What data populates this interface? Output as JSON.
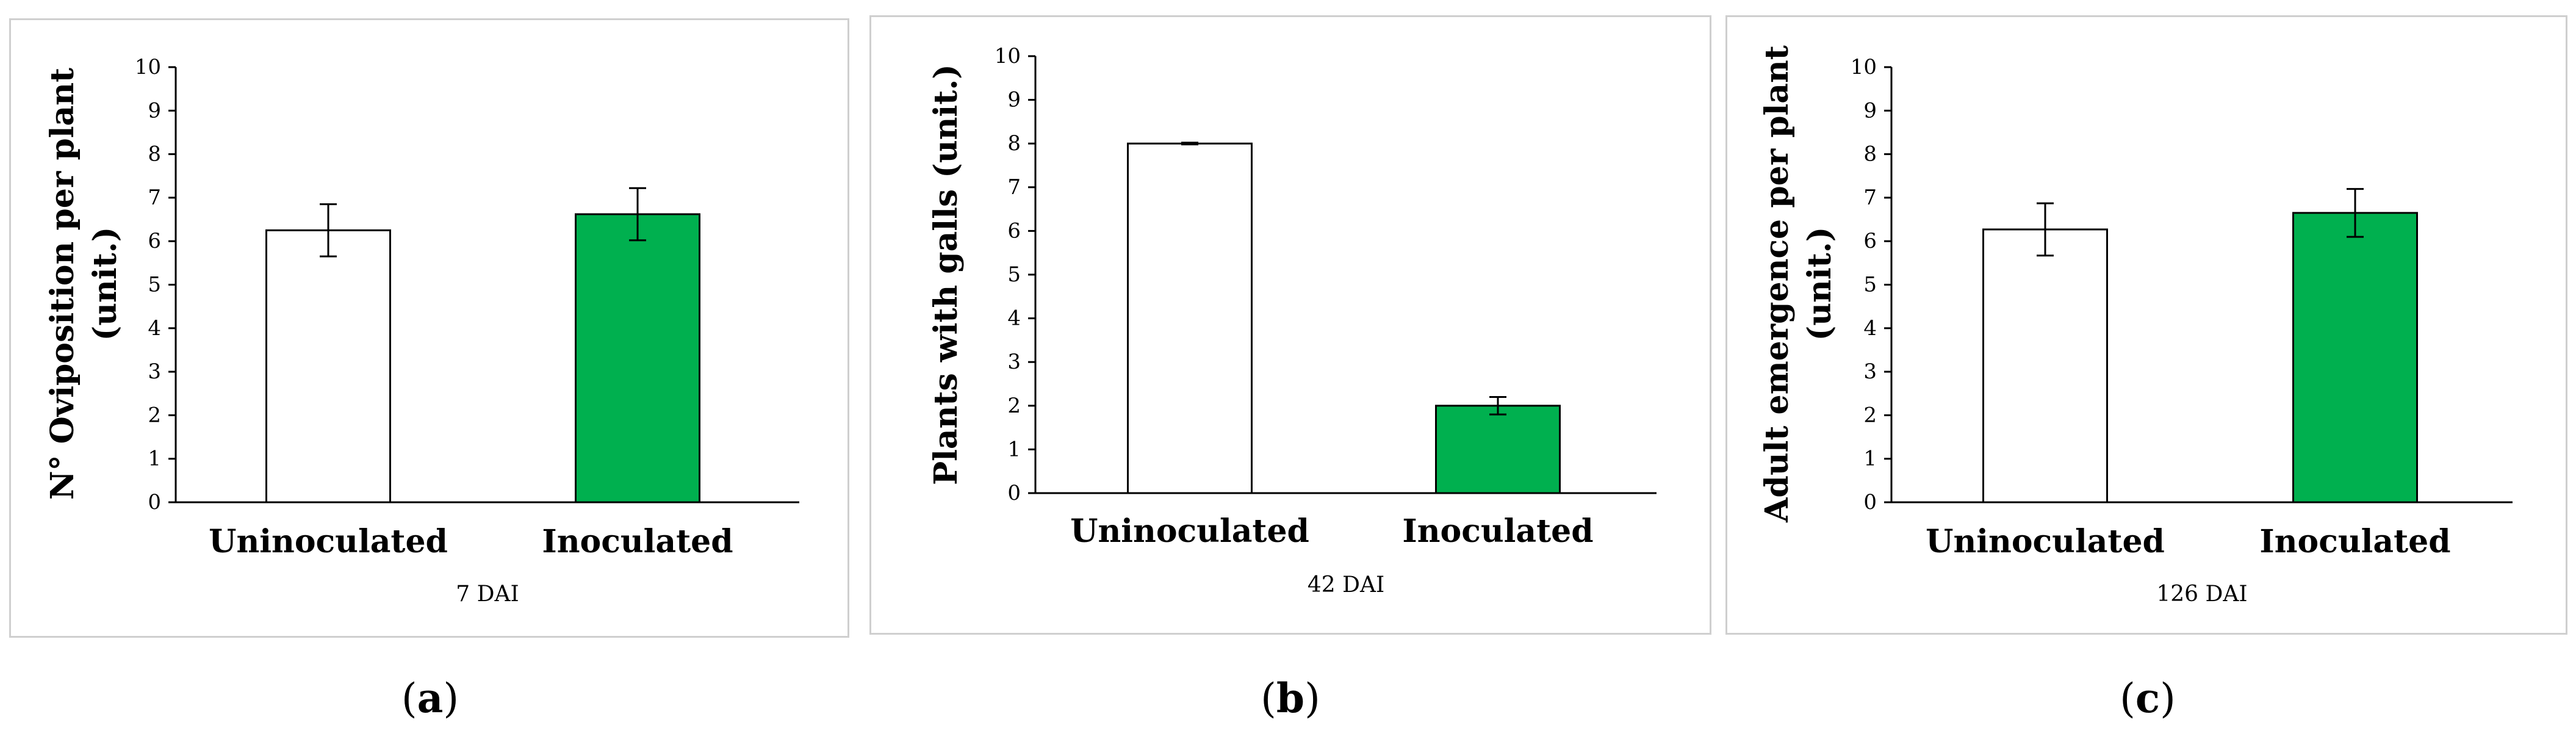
{
  "colors": {
    "uninoculated": "#ffffff",
    "inoculated": "#00b04f",
    "stroke": "#000000",
    "axis": "#000000"
  },
  "panels": [
    {
      "caption_open": "(",
      "caption_letter": "a",
      "caption_close": ")"
    },
    {
      "caption_open": "(",
      "caption_letter": "b",
      "caption_close": ")"
    },
    {
      "caption_open": "(",
      "caption_letter": "c",
      "caption_close": ")"
    }
  ],
  "chart_data": [
    {
      "type": "bar",
      "categories": [
        "Uninoculated",
        "Inoculated"
      ],
      "values": [
        6.25,
        6.62
      ],
      "errors": [
        0.6,
        0.6
      ],
      "xlabel": "7  DAI",
      "ylabel_line1": "N° Oviposition per plant",
      "ylabel_line2": "(unit.)",
      "ylim": [
        0,
        10
      ],
      "yticks": [
        "0",
        "1",
        "2",
        "3",
        "4",
        "5",
        "6",
        "7",
        "8",
        "9",
        "10"
      ],
      "grid": false
    },
    {
      "type": "bar",
      "categories": [
        "Uninoculated",
        "Inoculated"
      ],
      "values": [
        8.0,
        2.0
      ],
      "errors": [
        0.02,
        0.2
      ],
      "xlabel": "42 DAI",
      "ylabel_line1": "Plants with galls (unit.)",
      "ylabel_line2": "",
      "ylim": [
        0,
        10
      ],
      "yticks": [
        "0",
        "1",
        "2",
        "3",
        "4",
        "5",
        "6",
        "7",
        "8",
        "9",
        "10"
      ],
      "grid": false
    },
    {
      "type": "bar",
      "categories": [
        "Uninoculated",
        "Inoculated"
      ],
      "values": [
        6.27,
        6.65
      ],
      "errors": [
        0.6,
        0.55
      ],
      "xlabel": "126  DAI",
      "ylabel_line1": "Adult emergence per plant",
      "ylabel_line2": "(unit.)",
      "ylim": [
        0,
        10
      ],
      "yticks": [
        "0",
        "1",
        "2",
        "3",
        "4",
        "5",
        "6",
        "7",
        "8",
        "9",
        "10"
      ],
      "grid": false
    }
  ]
}
